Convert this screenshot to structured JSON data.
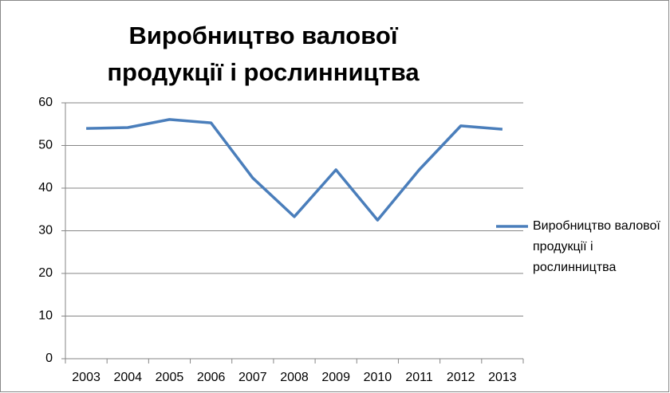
{
  "chart_data": {
    "type": "line",
    "title": "Виробництво валової продукції і рослинництва",
    "categories": [
      "2003",
      "2004",
      "2005",
      "2006",
      "2007",
      "2008",
      "2009",
      "2010",
      "2011",
      "2012",
      "2013"
    ],
    "series": [
      {
        "name": "Виробництво валової продукції і рослинництва",
        "color": "#4a7ebb",
        "values": [
          54.0,
          54.2,
          56.1,
          55.3,
          42.4,
          33.3,
          44.3,
          32.5,
          44.3,
          54.6,
          53.8
        ]
      }
    ],
    "ylim": [
      0,
      60
    ],
    "yticks": [
      0,
      10,
      20,
      30,
      40,
      50,
      60
    ],
    "grid": true,
    "legend": "right"
  }
}
